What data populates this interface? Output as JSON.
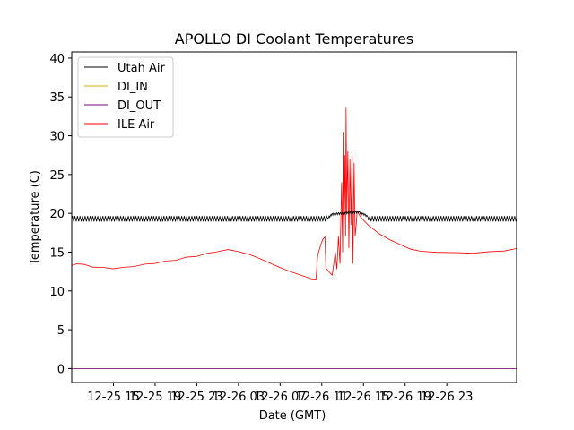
{
  "chart_data": {
    "type": "line",
    "title": "APOLLO DI Coolant Temperatures",
    "xlabel": "Date (GMT)",
    "ylabel": "Temperature (C)",
    "ylim": [
      -1.8,
      40.8
    ],
    "xlim_hours": [
      0,
      42.7
    ],
    "y_ticks": [
      0,
      5,
      10,
      15,
      20,
      25,
      30,
      35,
      40
    ],
    "x_ticks": [
      {
        "hour": 4,
        "label": "12-25 15"
      },
      {
        "hour": 8,
        "label": "12-25 19"
      },
      {
        "hour": 12,
        "label": "12-25 23"
      },
      {
        "hour": 16,
        "label": "12-26 03"
      },
      {
        "hour": 20,
        "label": "12-26 07"
      },
      {
        "hour": 24,
        "label": "12-26 11"
      },
      {
        "hour": 28,
        "label": "12-26 15"
      },
      {
        "hour": 32,
        "label": "12-26 19"
      },
      {
        "hour": 36,
        "label": "12-26 23"
      }
    ],
    "legend_position": "upper-left",
    "series": [
      {
        "name": "Utah Air",
        "color": "#000000",
        "base_points": [
          [
            0,
            19.3
          ],
          [
            24.5,
            19.3
          ],
          [
            25.0,
            19.9
          ],
          [
            27.5,
            20.2
          ],
          [
            28.2,
            19.8
          ],
          [
            28.6,
            19.3
          ],
          [
            42.7,
            19.3
          ]
        ],
        "oscillation_amplitude": 0.35
      },
      {
        "name": "DI_IN",
        "color": "#d4b000",
        "base_points": [
          [
            0,
            0
          ],
          [
            42.7,
            0
          ]
        ]
      },
      {
        "name": "DI_OUT",
        "color": "#800080",
        "base_points": [
          [
            0,
            0
          ],
          [
            42.7,
            0
          ]
        ]
      },
      {
        "name": "ILE Air",
        "color": "#ff0000",
        "base_points": [
          [
            0,
            13.3
          ],
          [
            0.5,
            13.5
          ],
          [
            1.2,
            13.4
          ],
          [
            2,
            13.1
          ],
          [
            3,
            13.0
          ],
          [
            4,
            12.9
          ],
          [
            5,
            13.0
          ],
          [
            6,
            13.2
          ],
          [
            7,
            13.4
          ],
          [
            8,
            13.6
          ],
          [
            9,
            13.8
          ],
          [
            10,
            14.0
          ],
          [
            11,
            14.3
          ],
          [
            12,
            14.5
          ],
          [
            13,
            14.8
          ],
          [
            14,
            15.1
          ],
          [
            15,
            15.3
          ],
          [
            16,
            15.1
          ],
          [
            17,
            14.7
          ],
          [
            18,
            14.2
          ],
          [
            19,
            13.6
          ],
          [
            20,
            13.0
          ],
          [
            21,
            12.5
          ],
          [
            22,
            12.0
          ],
          [
            23.0,
            11.6
          ],
          [
            23.45,
            11.5
          ],
          [
            23.6,
            14.6
          ],
          [
            23.9,
            15.9
          ],
          [
            24.1,
            16.7
          ],
          [
            24.3,
            16.9
          ],
          [
            24.4,
            13.0
          ],
          [
            24.7,
            12.4
          ],
          [
            25.0,
            12.1
          ],
          [
            25.3,
            12.3
          ],
          [
            25.6,
            14.0
          ],
          [
            26.2,
            19.5
          ],
          [
            27.4,
            20.3
          ],
          [
            27.7,
            19.6
          ],
          [
            28.5,
            18.4
          ],
          [
            29.5,
            17.4
          ],
          [
            30.5,
            16.6
          ],
          [
            31.5,
            16.0
          ],
          [
            32.5,
            15.4
          ],
          [
            33.5,
            15.1
          ],
          [
            35,
            15.0
          ],
          [
            37,
            14.9
          ],
          [
            38.5,
            14.9
          ],
          [
            40,
            15.0
          ],
          [
            41.5,
            15.2
          ],
          [
            42.7,
            15.4
          ]
        ],
        "spike_points": [
          [
            25.3,
            15.0
          ],
          [
            25.45,
            12.8
          ],
          [
            25.6,
            17.0
          ],
          [
            25.75,
            13.5
          ],
          [
            25.9,
            24.0
          ],
          [
            26.0,
            15.0
          ],
          [
            26.05,
            30.5
          ],
          [
            26.12,
            19.0
          ],
          [
            26.2,
            27.5
          ],
          [
            26.28,
            17.0
          ],
          [
            26.33,
            33.6
          ],
          [
            26.4,
            20.0
          ],
          [
            26.5,
            28.0
          ],
          [
            26.6,
            15.5
          ],
          [
            26.7,
            27.0
          ],
          [
            26.8,
            18.5
          ],
          [
            26.9,
            27.5
          ],
          [
            27.0,
            13.5
          ],
          [
            27.1,
            26.5
          ],
          [
            27.2,
            17.0
          ],
          [
            27.3,
            18.5
          ],
          [
            27.4,
            20.3
          ]
        ]
      }
    ]
  }
}
